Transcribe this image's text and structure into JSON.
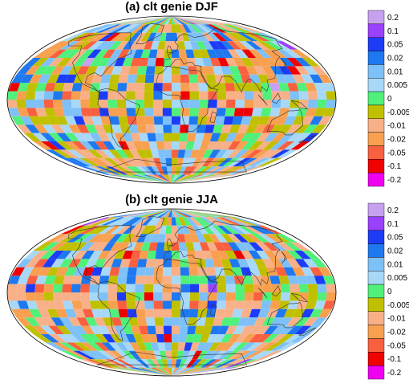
{
  "panels": [
    {
      "id": "a",
      "title": "(a) clt genie DJF",
      "seed": 17
    },
    {
      "id": "b",
      "title": "(b) clt genie JJA",
      "seed": 53
    }
  ],
  "colorbar": {
    "labels": [
      "0.2",
      "0.1",
      "0.05",
      "0.02",
      "0.01",
      "0.005",
      "0",
      "-0.005",
      "-0.01",
      "-0.02",
      "-0.05",
      "-0.1",
      "-0.2"
    ],
    "colors": [
      "#c8a0f0",
      "#9a40ff",
      "#1c3cf8",
      "#1e78f0",
      "#7ec0f8",
      "#a8d8f8",
      "#50f07a",
      "#c0c000",
      "#f8b088",
      "#f8a050",
      "#f86040",
      "#f00000",
      "#f000f0"
    ]
  },
  "colors": {
    "coastline": "#333333",
    "frame": "#000000"
  }
}
